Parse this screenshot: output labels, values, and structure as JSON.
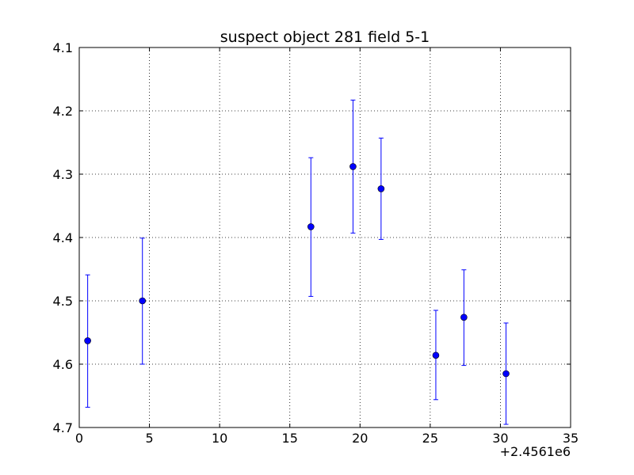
{
  "chart_data": {
    "type": "scatter",
    "title": "suspect object 281 field 5-1",
    "xlabel": "",
    "ylabel": "",
    "x_offset_label": "+2.4561e6",
    "xlim": [
      0,
      35
    ],
    "ylim": [
      4.7,
      4.1
    ],
    "y_inverted": true,
    "grid": true,
    "x_ticks": [
      0,
      5,
      10,
      15,
      20,
      25,
      30,
      35
    ],
    "x_tick_labels": [
      "0",
      "5",
      "10",
      "15",
      "20",
      "25",
      "30",
      "35"
    ],
    "y_ticks": [
      4.1,
      4.2,
      4.3,
      4.4,
      4.5,
      4.6,
      4.7
    ],
    "y_tick_labels": [
      "4.1",
      "4.2",
      "4.3",
      "4.4",
      "4.5",
      "4.6",
      "4.7"
    ],
    "marker_color": "#0000ff",
    "series": [
      {
        "points": [
          {
            "x": 0.6,
            "y": 4.563,
            "yerr_low": 4.668,
            "yerr_high": 4.459
          },
          {
            "x": 4.5,
            "y": 4.5,
            "yerr_low": 4.6,
            "yerr_high": 4.401
          },
          {
            "x": 16.5,
            "y": 4.383,
            "yerr_low": 4.493,
            "yerr_high": 4.274
          },
          {
            "x": 19.5,
            "y": 4.288,
            "yerr_low": 4.393,
            "yerr_high": 4.183
          },
          {
            "x": 21.5,
            "y": 4.323,
            "yerr_low": 4.403,
            "yerr_high": 4.243
          },
          {
            "x": 25.4,
            "y": 4.586,
            "yerr_low": 4.656,
            "yerr_high": 4.515
          },
          {
            "x": 27.4,
            "y": 4.526,
            "yerr_low": 4.602,
            "yerr_high": 4.451
          },
          {
            "x": 30.4,
            "y": 4.615,
            "yerr_low": 4.695,
            "yerr_high": 4.535
          }
        ]
      }
    ]
  }
}
